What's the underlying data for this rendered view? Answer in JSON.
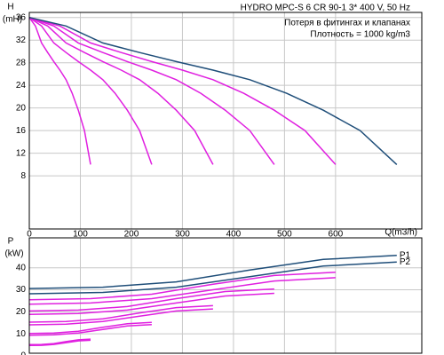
{
  "chart_data": [
    {
      "type": "line",
      "title": "HYDRO MPC-S 6 CR 90-1    3* 400 V, 50 Hz",
      "annotations": [
        "Потеря в фитингах и клапанах",
        "Плотность = 1000 kg/m3"
      ],
      "y_label": "H",
      "y_unit": "(mH)",
      "x_label": "Q(m3/h)",
      "xlim": [
        0,
        769
      ],
      "ylim": [
        -1.4,
        36.9
      ],
      "xticks": [
        0,
        100,
        200,
        300,
        400,
        500,
        600
      ],
      "yticks": [
        8,
        12,
        16,
        20,
        24,
        28,
        32,
        36
      ],
      "grid": true,
      "series": [
        {
          "color": "#e020e0",
          "x": [
            0,
            12,
            24,
            36,
            48,
            60,
            72,
            84,
            96,
            108,
            120
          ],
          "values": [
            36,
            34.5,
            31.5,
            29.8,
            28.2,
            26.7,
            25,
            22.6,
            19.6,
            16,
            10
          ]
        },
        {
          "color": "#e020e0",
          "x": [
            0,
            24,
            48,
            72,
            96,
            120,
            144,
            168,
            192,
            216,
            240
          ],
          "values": [
            36,
            34.5,
            31.5,
            29.8,
            28.2,
            26.7,
            25,
            22.6,
            19.6,
            16,
            10
          ]
        },
        {
          "color": "#e020e0",
          "x": [
            0,
            36,
            72,
            108,
            144,
            180,
            216,
            252,
            288,
            324,
            360
          ],
          "values": [
            36,
            34.5,
            31.5,
            29.8,
            28.2,
            26.7,
            25,
            22.6,
            19.6,
            16,
            10
          ]
        },
        {
          "color": "#e020e0",
          "x": [
            0,
            48,
            96,
            144,
            192,
            240,
            288,
            336,
            384,
            432,
            480
          ],
          "values": [
            36,
            34.5,
            31.5,
            29.8,
            28.2,
            26.7,
            25,
            22.6,
            19.6,
            16,
            10
          ]
        },
        {
          "color": "#e020e0",
          "x": [
            0,
            60,
            120,
            180,
            240,
            300,
            360,
            420,
            480,
            540,
            600
          ],
          "values": [
            36,
            34.5,
            31.5,
            29.8,
            28.2,
            26.7,
            25,
            22.6,
            19.6,
            16,
            10
          ]
        },
        {
          "color": "#1f4e79",
          "x": [
            0,
            72,
            144,
            216,
            288,
            360,
            432,
            504,
            576,
            648,
            720
          ],
          "values": [
            36,
            34.5,
            31.5,
            29.8,
            28.2,
            26.7,
            25,
            22.6,
            19.6,
            16,
            10
          ]
        }
      ]
    },
    {
      "type": "line",
      "y_label": "P",
      "y_unit": "(kW)",
      "xlim": [
        0,
        769
      ],
      "ylim": [
        1.2,
        53.6
      ],
      "xticks": [
        0,
        100,
        200,
        300,
        400,
        500,
        600
      ],
      "yticks": [
        0,
        10,
        20,
        30,
        40
      ],
      "grid": true,
      "series": [
        {
          "color": "#e020e0",
          "x": [
            0,
            24,
            48,
            72,
            96,
            120
          ],
          "values": [
            5.1,
            5.2,
            5.6,
            6.5,
            7.3,
            7.6
          ]
        },
        {
          "color": "#e020e0",
          "x": [
            0,
            24,
            48,
            72,
            96,
            120
          ],
          "values": [
            4.7,
            4.8,
            5.2,
            6,
            6.8,
            7.1
          ]
        },
        {
          "color": "#e020e0",
          "x": [
            0,
            48,
            96,
            144,
            192,
            240
          ],
          "values": [
            10.2,
            10.4,
            11.2,
            13,
            14.6,
            15.2
          ]
        },
        {
          "color": "#e020e0",
          "x": [
            0,
            48,
            96,
            144,
            192,
            240
          ],
          "values": [
            9.4,
            9.6,
            10.4,
            12,
            13.6,
            14.2
          ]
        },
        {
          "color": "#e020e0",
          "x": [
            0,
            72,
            144,
            216,
            288,
            360
          ],
          "values": [
            15.3,
            15.6,
            16.8,
            19.5,
            21.9,
            22.8
          ]
        },
        {
          "color": "#e020e0",
          "x": [
            0,
            72,
            144,
            216,
            288,
            360
          ],
          "values": [
            14.1,
            14.4,
            15.6,
            18,
            20.4,
            21.3
          ]
        },
        {
          "color": "#e020e0",
          "x": [
            0,
            96,
            192,
            288,
            384,
            480
          ],
          "values": [
            20.4,
            20.8,
            22.4,
            26,
            29.2,
            30.4
          ]
        },
        {
          "color": "#e020e0",
          "x": [
            0,
            96,
            192,
            288,
            384,
            480
          ],
          "values": [
            18.8,
            19.2,
            20.8,
            24,
            27.2,
            28.4
          ]
        },
        {
          "color": "#e020e0",
          "x": [
            0,
            120,
            240,
            360,
            480,
            600
          ],
          "values": [
            25.5,
            26,
            28,
            32.5,
            36.5,
            38
          ]
        },
        {
          "color": "#e020e0",
          "x": [
            0,
            120,
            240,
            360,
            480,
            600
          ],
          "values": [
            23.5,
            24,
            26,
            30,
            34,
            35.5
          ]
        },
        {
          "name": "P1",
          "color": "#1f4e79",
          "x": [
            0,
            144,
            288,
            432,
            576,
            720
          ],
          "values": [
            30.6,
            31.2,
            33.6,
            39,
            43.8,
            45.6
          ]
        },
        {
          "name": "P2",
          "color": "#1f4e79",
          "x": [
            0,
            144,
            288,
            432,
            576,
            720
          ],
          "values": [
            28.2,
            28.8,
            31.2,
            36,
            40.8,
            42.6
          ]
        }
      ]
    }
  ]
}
